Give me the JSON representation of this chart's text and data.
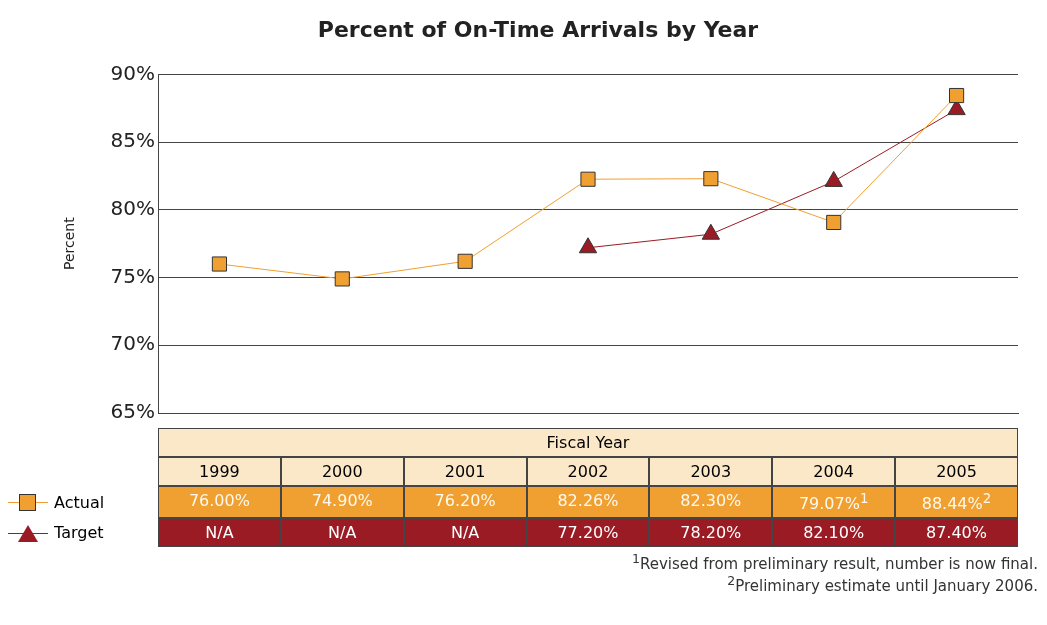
{
  "chart_data": {
    "type": "line",
    "title": "Percent of On-Time Arrivals by Year",
    "xlabel": "Fiscal Year",
    "ylabel": "Percent",
    "categories": [
      "1999",
      "2000",
      "2001",
      "2002",
      "2003",
      "2004",
      "2005"
    ],
    "series": [
      {
        "name": "Actual",
        "color": "#f0a030",
        "marker": "square",
        "values": [
          76.0,
          74.9,
          76.2,
          82.26,
          82.3,
          79.07,
          88.44
        ],
        "value_labels": [
          "76.00%",
          "74.90%",
          "76.20%",
          "82.26%",
          "82.30%",
          "79.07%$^{1}$",
          "88.44%$^{2}$"
        ]
      },
      {
        "name": "Target",
        "color": "#9b1b25",
        "marker": "triangle",
        "values": [
          null,
          null,
          null,
          77.2,
          78.2,
          82.1,
          87.4
        ],
        "value_labels": [
          "N/A",
          "N/A",
          "N/A",
          "77.20%",
          "78.20%",
          "82.10%",
          "87.40%"
        ]
      }
    ],
    "ylim": [
      65,
      90
    ],
    "yticks": [
      {
        "value": 65,
        "label": "65%"
      },
      {
        "value": 70,
        "label": "70%"
      },
      {
        "value": 75,
        "label": "75%"
      },
      {
        "value": 80,
        "label": "80%"
      },
      {
        "value": 85,
        "label": "85%"
      },
      {
        "value": 90,
        "label": "90%"
      }
    ],
    "grid": "y",
    "legend": "bottom left",
    "tick_labels": "y",
    "annotations": [
      "$^{1}$Revised from preliminary result, number is now final.",
      "$^{2}$Preliminary estimate until January 2006."
    ]
  }
}
